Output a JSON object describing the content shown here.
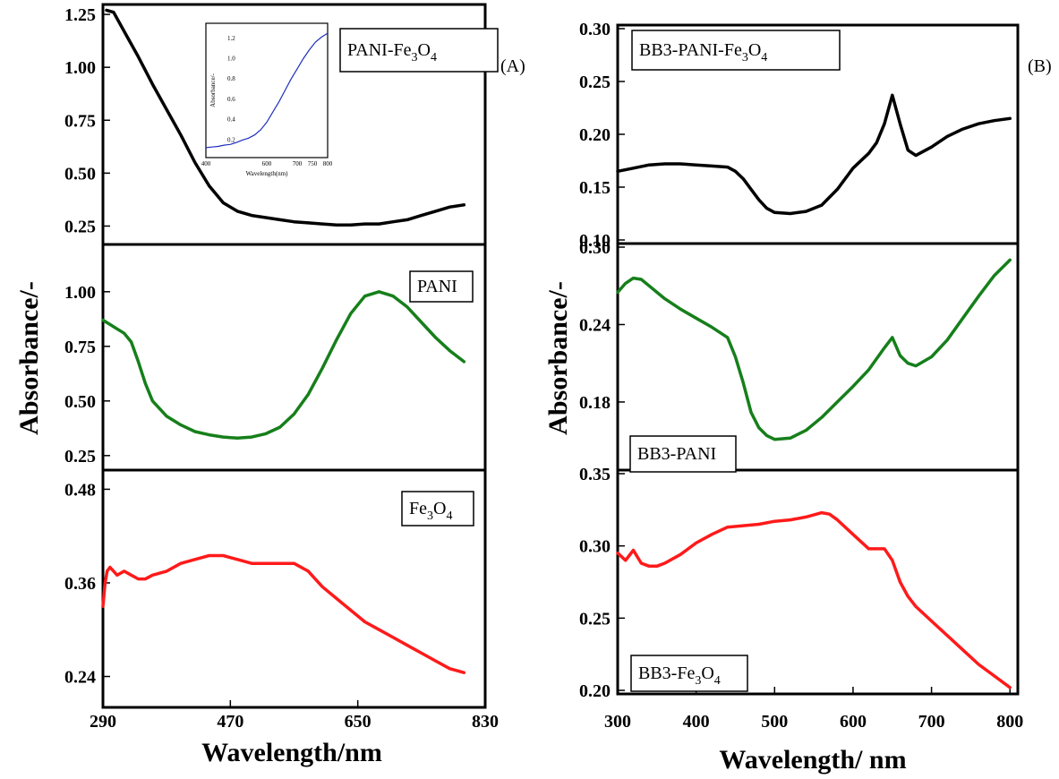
{
  "chart_data": [
    {
      "type": "line",
      "panel_label": "(A)",
      "xlabel": "Wavelength/nm",
      "ylabel": "Absorbance/-",
      "xlim": [
        290,
        830
      ],
      "xticks": [
        "290",
        "470",
        "650",
        "830"
      ],
      "subplots": [
        {
          "label_parts": [
            {
              "t": "PANI-Fe",
              "sub": false
            },
            {
              "t": "3",
              "sub": true
            },
            {
              "t": "O",
              "sub": false
            },
            {
              "t": "4",
              "sub": true
            }
          ],
          "label_position": "top-right",
          "color": "#000000",
          "ylim": [
            0.18,
            1.28
          ],
          "yticks": [
            "0.25",
            "0.50",
            "0.75",
            "1.00",
            "1.25"
          ],
          "x": [
            295,
            305,
            320,
            340,
            360,
            380,
            400,
            420,
            440,
            460,
            480,
            500,
            520,
            540,
            560,
            580,
            600,
            620,
            640,
            660,
            680,
            700,
            720,
            740,
            760,
            780,
            800
          ],
          "y": [
            1.27,
            1.26,
            1.17,
            1.05,
            0.92,
            0.8,
            0.68,
            0.55,
            0.44,
            0.36,
            0.32,
            0.3,
            0.29,
            0.28,
            0.27,
            0.265,
            0.26,
            0.255,
            0.255,
            0.26,
            0.26,
            0.27,
            0.28,
            0.3,
            0.32,
            0.34,
            0.35
          ],
          "inset": {
            "ylabel": "Absorbance/-",
            "xlabel": "Wavelength(nm)",
            "xticks": [
              "400",
              "600",
              "700",
              "750",
              "800"
            ],
            "yticks": [
              "0.2",
              "0.4",
              "0.6",
              "0.8",
              "1.0",
              "1.2"
            ],
            "color": "#1f2fbf",
            "x": [
              400,
              420,
              440,
              460,
              480,
              500,
              520,
              540,
              560,
              580,
              600,
              620,
              640,
              660,
              680,
              700,
              720,
              740,
              760,
              780,
              800
            ],
            "y": [
              0.1,
              0.105,
              0.11,
              0.12,
              0.125,
              0.14,
              0.16,
              0.175,
              0.2,
              0.24,
              0.3,
              0.38,
              0.46,
              0.55,
              0.64,
              0.72,
              0.8,
              0.87,
              0.93,
              0.97,
              1.0
            ]
          }
        },
        {
          "label_parts": [
            {
              "t": "PANI",
              "sub": false
            }
          ],
          "label_position": "top-right",
          "color": "#167f1b",
          "ylim": [
            0.2,
            1.2
          ],
          "yticks": [
            "0.25",
            "0.50",
            "0.75",
            "1.00"
          ],
          "x": [
            290,
            300,
            310,
            320,
            330,
            340,
            350,
            360,
            380,
            400,
            420,
            440,
            460,
            480,
            500,
            520,
            540,
            560,
            580,
            600,
            620,
            640,
            660,
            680,
            700,
            720,
            740,
            760,
            780,
            800
          ],
          "y": [
            0.87,
            0.85,
            0.83,
            0.81,
            0.77,
            0.68,
            0.58,
            0.5,
            0.43,
            0.39,
            0.36,
            0.345,
            0.335,
            0.33,
            0.335,
            0.35,
            0.38,
            0.44,
            0.53,
            0.65,
            0.78,
            0.9,
            0.98,
            1.0,
            0.98,
            0.93,
            0.86,
            0.79,
            0.73,
            0.68
          ]
        },
        {
          "label_parts": [
            {
              "t": "Fe",
              "sub": false
            },
            {
              "t": "3",
              "sub": true
            },
            {
              "t": "O",
              "sub": false
            },
            {
              "t": "4",
              "sub": true
            }
          ],
          "label_position": "top-right",
          "color": "#ff1a1a",
          "ylim": [
            0.205,
            0.5
          ],
          "yticks": [
            "0.24",
            "0.36",
            "0.48"
          ],
          "x": [
            290,
            293,
            296,
            300,
            310,
            320,
            330,
            340,
            350,
            360,
            380,
            400,
            420,
            440,
            460,
            480,
            500,
            520,
            540,
            560,
            580,
            600,
            620,
            640,
            660,
            680,
            700,
            720,
            740,
            760,
            780,
            800
          ],
          "y": [
            0.33,
            0.36,
            0.375,
            0.38,
            0.37,
            0.375,
            0.37,
            0.365,
            0.365,
            0.37,
            0.375,
            0.385,
            0.39,
            0.395,
            0.395,
            0.39,
            0.385,
            0.385,
            0.385,
            0.385,
            0.375,
            0.355,
            0.34,
            0.325,
            0.31,
            0.3,
            0.29,
            0.28,
            0.27,
            0.26,
            0.25,
            0.245
          ]
        }
      ]
    },
    {
      "type": "line",
      "panel_label": "(B)",
      "xlabel": "Wavelength/ nm",
      "ylabel": "Absorbance/-",
      "xlim": [
        300,
        810
      ],
      "xticks": [
        "300",
        "400",
        "500",
        "600",
        "700",
        "800"
      ],
      "subplots": [
        {
          "label_parts": [
            {
              "t": "BB3-PANI-Fe",
              "sub": false
            },
            {
              "t": "3",
              "sub": true
            },
            {
              "t": "O",
              "sub": false
            },
            {
              "t": "4",
              "sub": true
            }
          ],
          "label_position": "top-left",
          "color": "#000000",
          "ylim": [
            0.1,
            0.3
          ],
          "yticks": [
            "0.10",
            "0.15",
            "0.20",
            "0.25",
            "0.30"
          ],
          "x": [
            300,
            320,
            340,
            360,
            380,
            400,
            420,
            440,
            450,
            460,
            470,
            480,
            490,
            500,
            520,
            540,
            560,
            580,
            600,
            620,
            630,
            640,
            650,
            660,
            670,
            680,
            700,
            720,
            740,
            760,
            780,
            800
          ],
          "y": [
            0.165,
            0.168,
            0.171,
            0.172,
            0.172,
            0.171,
            0.17,
            0.169,
            0.165,
            0.158,
            0.148,
            0.138,
            0.13,
            0.126,
            0.125,
            0.127,
            0.133,
            0.148,
            0.168,
            0.182,
            0.192,
            0.21,
            0.237,
            0.21,
            0.185,
            0.18,
            0.188,
            0.198,
            0.205,
            0.21,
            0.213,
            0.215
          ]
        },
        {
          "label_parts": [
            {
              "t": "BB3-PANI",
              "sub": false
            }
          ],
          "label_position": "bottom-left",
          "color": "#167f1b",
          "ylim": [
            0.13,
            0.3
          ],
          "yticks": [
            "0.18",
            "0.24",
            "0.30"
          ],
          "x": [
            300,
            310,
            320,
            330,
            340,
            350,
            360,
            380,
            400,
            420,
            440,
            450,
            460,
            470,
            480,
            490,
            500,
            520,
            540,
            560,
            580,
            600,
            620,
            640,
            650,
            660,
            670,
            680,
            700,
            720,
            740,
            760,
            780,
            800
          ],
          "y": [
            0.265,
            0.272,
            0.276,
            0.275,
            0.27,
            0.265,
            0.26,
            0.252,
            0.245,
            0.238,
            0.23,
            0.215,
            0.195,
            0.172,
            0.16,
            0.154,
            0.151,
            0.152,
            0.158,
            0.168,
            0.18,
            0.192,
            0.205,
            0.222,
            0.23,
            0.216,
            0.21,
            0.208,
            0.215,
            0.228,
            0.245,
            0.262,
            0.278,
            0.29
          ]
        },
        {
          "label_parts": [
            {
              "t": "BB3-Fe",
              "sub": false
            },
            {
              "t": "3",
              "sub": true
            },
            {
              "t": "O",
              "sub": false
            },
            {
              "t": "4",
              "sub": true
            }
          ],
          "label_position": "bottom-left",
          "color": "#ff1a1a",
          "ylim": [
            0.2,
            0.35
          ],
          "yticks": [
            "0.20",
            "0.25",
            "0.30",
            "0.35"
          ],
          "x": [
            300,
            310,
            320,
            330,
            340,
            350,
            360,
            380,
            400,
            420,
            440,
            460,
            480,
            500,
            520,
            540,
            560,
            570,
            580,
            600,
            620,
            640,
            650,
            660,
            670,
            680,
            700,
            720,
            740,
            760,
            780,
            800
          ],
          "y": [
            0.295,
            0.29,
            0.297,
            0.288,
            0.286,
            0.286,
            0.288,
            0.294,
            0.302,
            0.308,
            0.313,
            0.314,
            0.315,
            0.317,
            0.318,
            0.32,
            0.323,
            0.322,
            0.318,
            0.308,
            0.298,
            0.298,
            0.29,
            0.275,
            0.265,
            0.258,
            0.248,
            0.238,
            0.228,
            0.218,
            0.21,
            0.202
          ]
        }
      ]
    }
  ]
}
